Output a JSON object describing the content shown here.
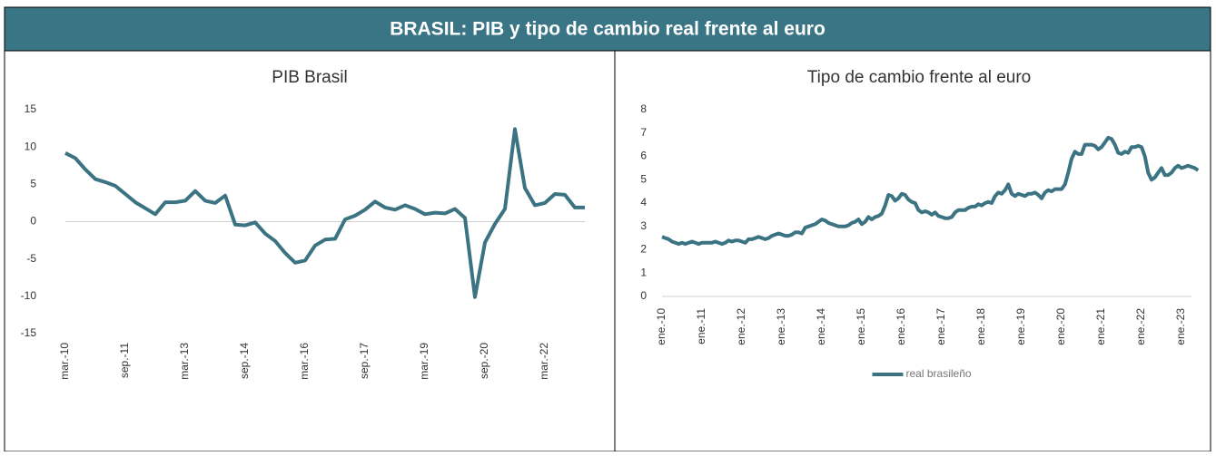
{
  "header": {
    "title": "BRASIL: PIB y tipo de cambio real frente al euro"
  },
  "chart_data": [
    {
      "type": "line",
      "title": "PIB Brasil",
      "categories": [
        "mar.-10",
        null,
        null,
        null,
        null,
        null,
        "sep.-11",
        null,
        null,
        null,
        null,
        null,
        "mar.-13",
        null,
        null,
        null,
        null,
        null,
        "sep.-14",
        null,
        null,
        null,
        null,
        null,
        "mar.-16",
        null,
        null,
        null,
        null,
        null,
        "sep.-17",
        null,
        null,
        null,
        null,
        null,
        "mar.-19",
        null,
        null,
        null,
        null,
        null,
        "sep.-20",
        null,
        null,
        null,
        null,
        null,
        "mar.-22",
        null,
        null,
        null,
        null
      ],
      "series": [
        {
          "name": null,
          "color": "#3b7383",
          "values": [
            9.2,
            8.5,
            7,
            5.7,
            5.3,
            4.8,
            3.7,
            2.6,
            1.8,
            1,
            2.6,
            2.6,
            2.8,
            4.1,
            2.8,
            2.5,
            3.5,
            -0.4,
            -0.5,
            -0.1,
            -1.6,
            -2.6,
            -4.2,
            -5.5,
            -5.2,
            -3.2,
            -2.4,
            -2.3,
            0.3,
            0.8,
            1.6,
            2.7,
            1.9,
            1.6,
            2.2,
            1.7,
            1,
            1.2,
            1.1,
            1.7,
            0.5,
            -10.1,
            -2.8,
            -0.3,
            1.7,
            12.4,
            4.5,
            2.2,
            2.5,
            3.7,
            3.6,
            1.9,
            1.9
          ]
        }
      ],
      "ylim": [
        -15,
        15
      ],
      "yticks": [
        -15,
        -10,
        -5,
        0,
        5,
        10,
        15
      ],
      "grid": false,
      "legend": false
    },
    {
      "type": "line",
      "title": "Tipo de cambio frente al euro",
      "categories": [
        "ene.-10",
        null,
        null,
        null,
        null,
        null,
        null,
        null,
        null,
        null,
        null,
        null,
        "ene.-11",
        null,
        null,
        null,
        null,
        null,
        null,
        null,
        null,
        null,
        null,
        null,
        "ene.-12",
        null,
        null,
        null,
        null,
        null,
        null,
        null,
        null,
        null,
        null,
        null,
        "ene.-13",
        null,
        null,
        null,
        null,
        null,
        null,
        null,
        null,
        null,
        null,
        null,
        "ene.-14",
        null,
        null,
        null,
        null,
        null,
        null,
        null,
        null,
        null,
        null,
        null,
        "ene.-15",
        null,
        null,
        null,
        null,
        null,
        null,
        null,
        null,
        null,
        null,
        null,
        "ene.-16",
        null,
        null,
        null,
        null,
        null,
        null,
        null,
        null,
        null,
        null,
        null,
        "ene.-17",
        null,
        null,
        null,
        null,
        null,
        null,
        null,
        null,
        null,
        null,
        null,
        "ene.-18",
        null,
        null,
        null,
        null,
        null,
        null,
        null,
        null,
        null,
        null,
        null,
        "ene.-19",
        null,
        null,
        null,
        null,
        null,
        null,
        null,
        null,
        null,
        null,
        null,
        "ene.-20",
        null,
        null,
        null,
        null,
        null,
        null,
        null,
        null,
        null,
        null,
        null,
        "ene.-21",
        null,
        null,
        null,
        null,
        null,
        null,
        null,
        null,
        null,
        null,
        null,
        "ene.-22",
        null,
        null,
        null,
        null,
        null,
        null,
        null,
        null,
        null,
        null,
        null,
        "ene.-23",
        null,
        null,
        null,
        null,
        null
      ],
      "series": [
        {
          "name": "real brasileño",
          "color": "#3b7383",
          "values": [
            2.55,
            2.5,
            2.45,
            2.35,
            2.3,
            2.25,
            2.3,
            2.25,
            2.3,
            2.35,
            2.3,
            2.25,
            2.3,
            2.3,
            2.3,
            2.3,
            2.35,
            2.3,
            2.25,
            2.3,
            2.4,
            2.35,
            2.4,
            2.4,
            2.35,
            2.3,
            2.45,
            2.45,
            2.5,
            2.55,
            2.5,
            2.45,
            2.5,
            2.6,
            2.65,
            2.7,
            2.65,
            2.6,
            2.6,
            2.65,
            2.75,
            2.75,
            2.7,
            2.95,
            3,
            3.05,
            3.1,
            3.2,
            3.3,
            3.25,
            3.15,
            3.1,
            3.05,
            3,
            3,
            3,
            3.05,
            3.15,
            3.2,
            3.3,
            3.1,
            3.2,
            3.4,
            3.3,
            3.4,
            3.45,
            3.55,
            3.9,
            4.35,
            4.3,
            4.1,
            4.2,
            4.4,
            4.35,
            4.15,
            4.05,
            4,
            3.7,
            3.6,
            3.65,
            3.6,
            3.5,
            3.6,
            3.45,
            3.4,
            3.35,
            3.35,
            3.4,
            3.6,
            3.7,
            3.7,
            3.7,
            3.8,
            3.85,
            3.85,
            3.95,
            3.9,
            4,
            4.05,
            4,
            4.3,
            4.45,
            4.4,
            4.55,
            4.8,
            4.4,
            4.3,
            4.4,
            4.35,
            4.3,
            4.4,
            4.4,
            4.45,
            4.35,
            4.2,
            4.45,
            4.55,
            4.5,
            4.6,
            4.6,
            4.6,
            4.8,
            5.3,
            5.9,
            6.2,
            6.1,
            6.1,
            6.5,
            6.5,
            6.5,
            6.45,
            6.3,
            6.4,
            6.6,
            6.8,
            6.75,
            6.5,
            6.15,
            6.1,
            6.2,
            6.15,
            6.4,
            6.4,
            6.45,
            6.4,
            6,
            5.3,
            5,
            5.1,
            5.3,
            5.5,
            5.2,
            5.2,
            5.3,
            5.5,
            5.6,
            5.5,
            5.55,
            5.6,
            5.55,
            5.5,
            5.4
          ]
        }
      ],
      "ylim": [
        0,
        8
      ],
      "yticks": [
        0,
        1,
        2,
        3,
        4,
        5,
        6,
        7,
        8
      ],
      "grid": false,
      "legend": "bottom"
    }
  ]
}
